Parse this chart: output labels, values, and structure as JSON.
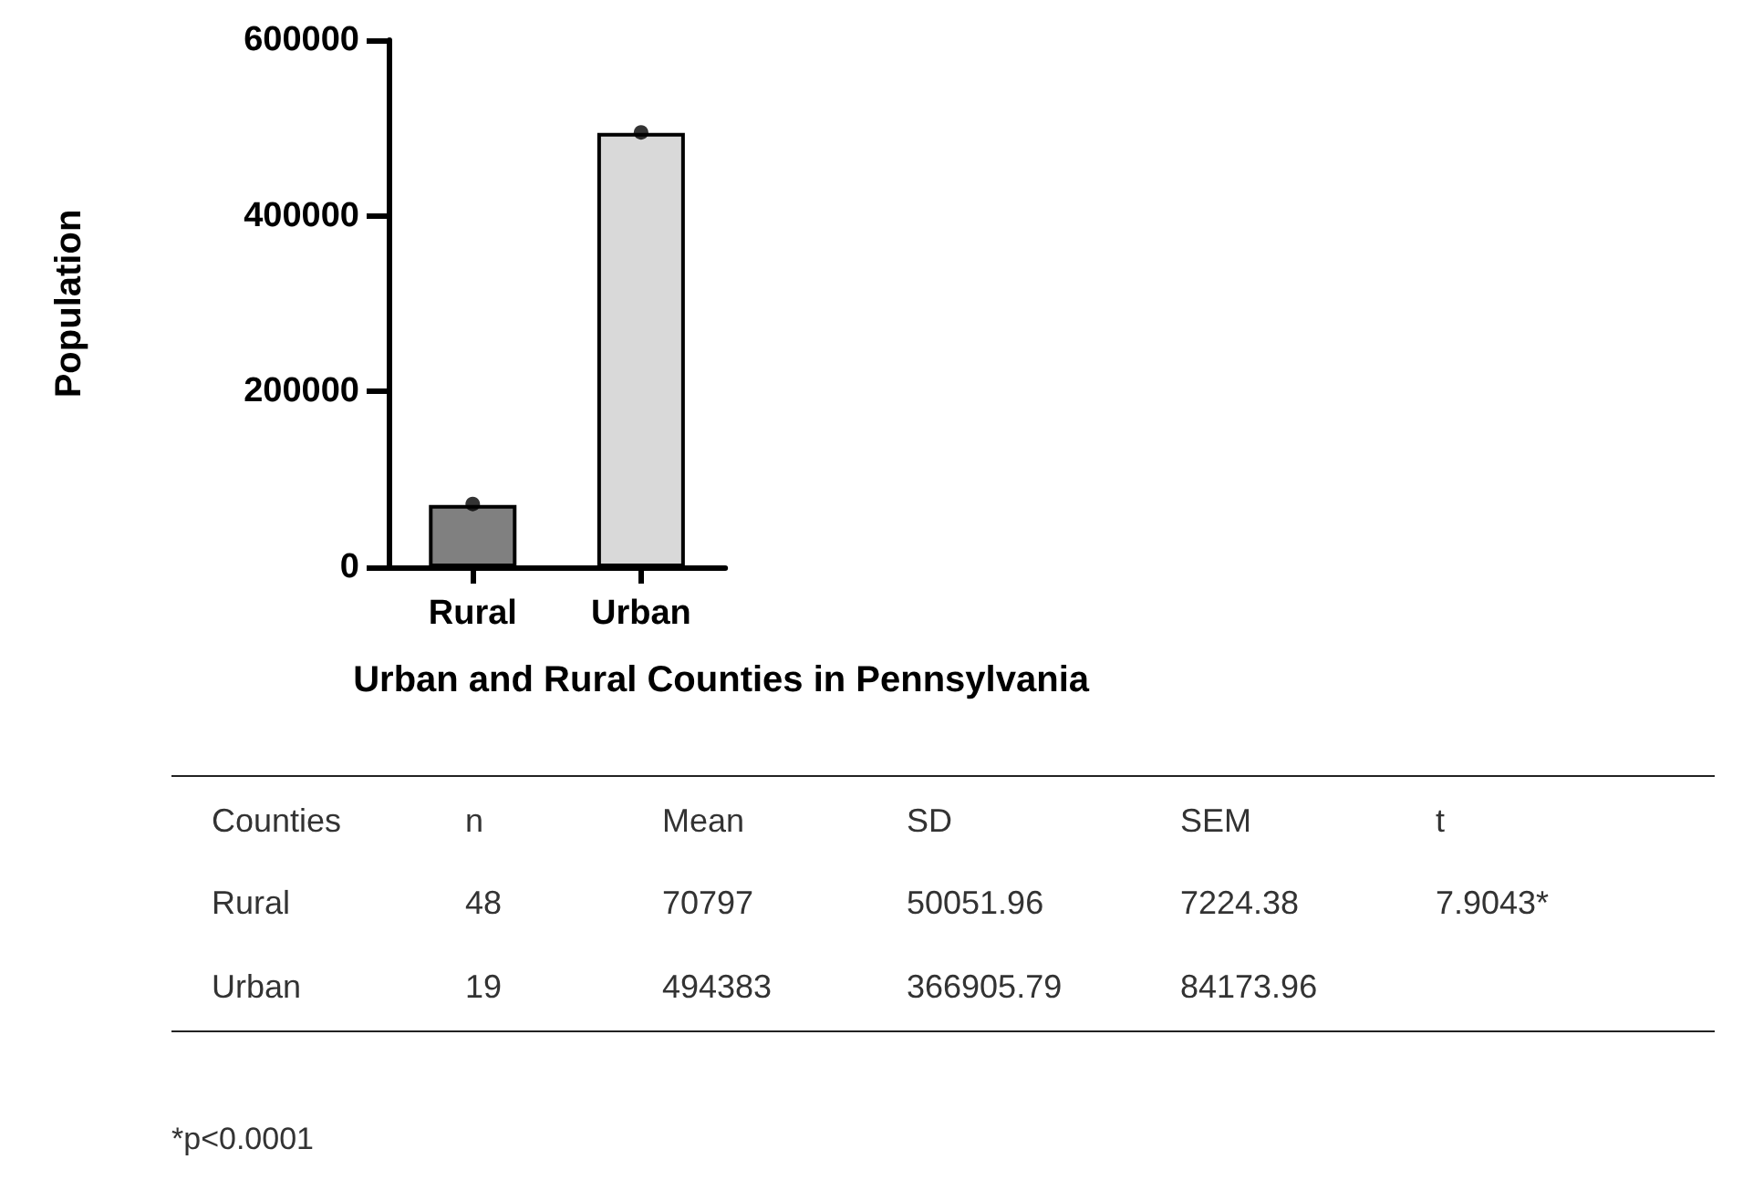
{
  "chart_data": {
    "type": "bar",
    "xlabel": "Urban and Rural Counties in Pennsylvania",
    "ylabel": "Population",
    "categories": [
      "Rural",
      "Urban"
    ],
    "series": [
      {
        "type": "bar",
        "colors": [
          "#808080",
          "#d9d9d9"
        ],
        "values": [
          70797,
          494383
        ]
      },
      {
        "type": "scatter",
        "x": [
          "Rural",
          "Urban"
        ],
        "color": "#000000",
        "values": [
          72000,
          495000
        ]
      }
    ],
    "ylim": [
      0,
      600000
    ],
    "yticks": [
      0,
      200000,
      400000,
      600000
    ],
    "grid": false,
    "marker": "circle",
    "annotations": [
      "Counties",
      "n",
      "Mean",
      "SD",
      "SEM",
      "t",
      "Rural",
      "48",
      "70797",
      "50051.96",
      "7224.38",
      "7.9043*",
      "Urban",
      "19",
      "494383",
      "366905.79",
      "84173.96",
      "*p<0.0001"
    ]
  }
}
